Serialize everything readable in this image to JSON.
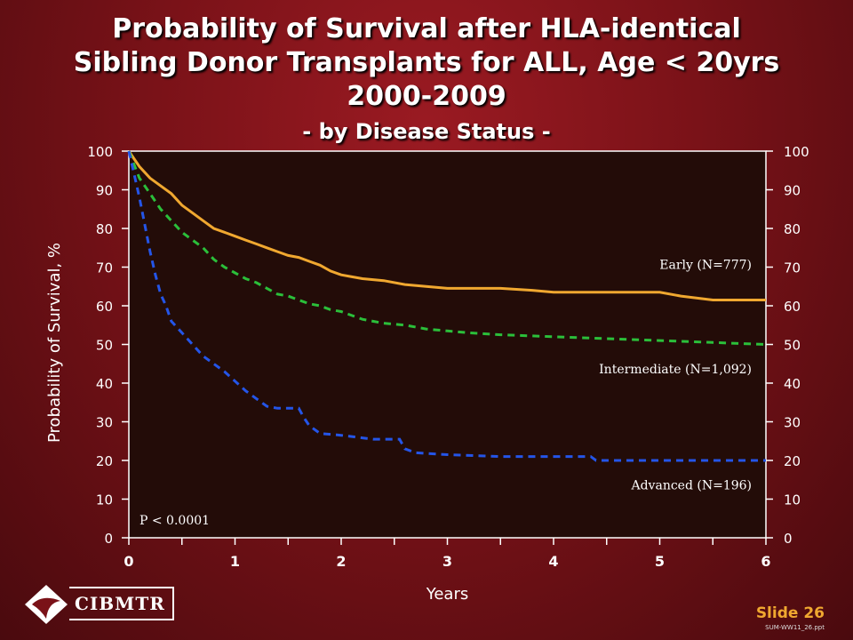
{
  "title_lines": [
    "Probability of Survival after HLA-identical",
    "Sibling Donor Transplants for ALL, Age < 20yrs",
    "2000-2009"
  ],
  "subtitle": "- by Disease Status -",
  "slide_label": "Slide 26",
  "file_id": "SUM-WW11_26.ppt",
  "logo_text": "CIBMTR",
  "chart_data": {
    "type": "line",
    "title": "Probability of Survival after HLA-identical Sibling Donor Transplants for ALL, Age < 20yrs 2000-2009 - by Disease Status -",
    "xlabel": "Years",
    "ylabel": "Probability of Survival, %",
    "xlim": [
      0,
      6
    ],
    "ylim": [
      0,
      100
    ],
    "x_ticks": [
      "0",
      "1",
      "2",
      "3",
      "4",
      "5",
      "6"
    ],
    "y_ticks": [
      "0",
      "10",
      "20",
      "30",
      "40",
      "50",
      "60",
      "70",
      "80",
      "90",
      "100"
    ],
    "grid": false,
    "annotation": "P < 0.0001",
    "colors": {
      "plot_bg": "#230c08",
      "early": "#f0a830",
      "intermediate": "#2bbf3a",
      "advanced": "#2455e8"
    },
    "series": [
      {
        "name": "Early (N=777)",
        "color": "#f0a830",
        "dash": "solid",
        "x": [
          0,
          0.1,
          0.2,
          0.3,
          0.4,
          0.5,
          0.6,
          0.7,
          0.8,
          0.9,
          1.0,
          1.1,
          1.2,
          1.3,
          1.4,
          1.5,
          1.6,
          1.7,
          1.8,
          1.9,
          2.0,
          2.1,
          2.2,
          2.4,
          2.6,
          2.8,
          3.0,
          3.5,
          3.8,
          4.0,
          4.5,
          5.0,
          5.2,
          5.5,
          6.0
        ],
        "values": [
          100,
          96,
          93,
          91,
          89,
          86,
          84,
          82,
          80,
          79,
          78,
          77,
          76,
          75,
          74,
          73,
          72.5,
          71.5,
          70.5,
          69,
          68,
          67.5,
          67,
          66.5,
          65.5,
          65,
          64.5,
          64.5,
          64,
          63.5,
          63.5,
          63.5,
          62.5,
          61.5,
          61.5
        ]
      },
      {
        "name": "Intermediate (N=1,092)",
        "color": "#2bbf3a",
        "dash": "dash",
        "x": [
          0,
          0.1,
          0.2,
          0.3,
          0.4,
          0.5,
          0.6,
          0.7,
          0.8,
          0.9,
          1.0,
          1.1,
          1.2,
          1.3,
          1.4,
          1.5,
          1.6,
          1.7,
          1.8,
          1.9,
          2.0,
          2.1,
          2.2,
          2.4,
          2.6,
          2.8,
          3.0,
          3.2,
          3.5,
          4.0,
          4.5,
          5.0,
          5.5,
          6.0
        ],
        "values": [
          100,
          93,
          89,
          85,
          82,
          79,
          77,
          75,
          72,
          70,
          68.5,
          67,
          66,
          64.5,
          63,
          62.5,
          61.5,
          60.5,
          60,
          59,
          58.5,
          57.5,
          56.5,
          55.5,
          55,
          54,
          53.5,
          53,
          52.5,
          52,
          51.5,
          51,
          50.5,
          50
        ]
      },
      {
        "name": "Advanced (N=196)",
        "color": "#2455e8",
        "dash": "dash",
        "x": [
          0,
          0.05,
          0.1,
          0.15,
          0.2,
          0.25,
          0.3,
          0.35,
          0.4,
          0.5,
          0.6,
          0.7,
          0.8,
          0.9,
          1.0,
          1.1,
          1.2,
          1.3,
          1.4,
          1.6,
          1.65,
          1.7,
          1.8,
          2.0,
          2.3,
          2.55,
          2.6,
          2.7,
          3.0,
          3.5,
          4.0,
          4.35,
          4.4,
          5.0,
          6.0
        ],
        "values": [
          100,
          94,
          88,
          81,
          74,
          68,
          63,
          60,
          56,
          53,
          50,
          47,
          45,
          43,
          40.5,
          38,
          36,
          34,
          33.5,
          33.5,
          31,
          29,
          27,
          26.5,
          25.5,
          25.5,
          23,
          22,
          21.5,
          21,
          21,
          21,
          20,
          20,
          20
        ]
      }
    ]
  }
}
